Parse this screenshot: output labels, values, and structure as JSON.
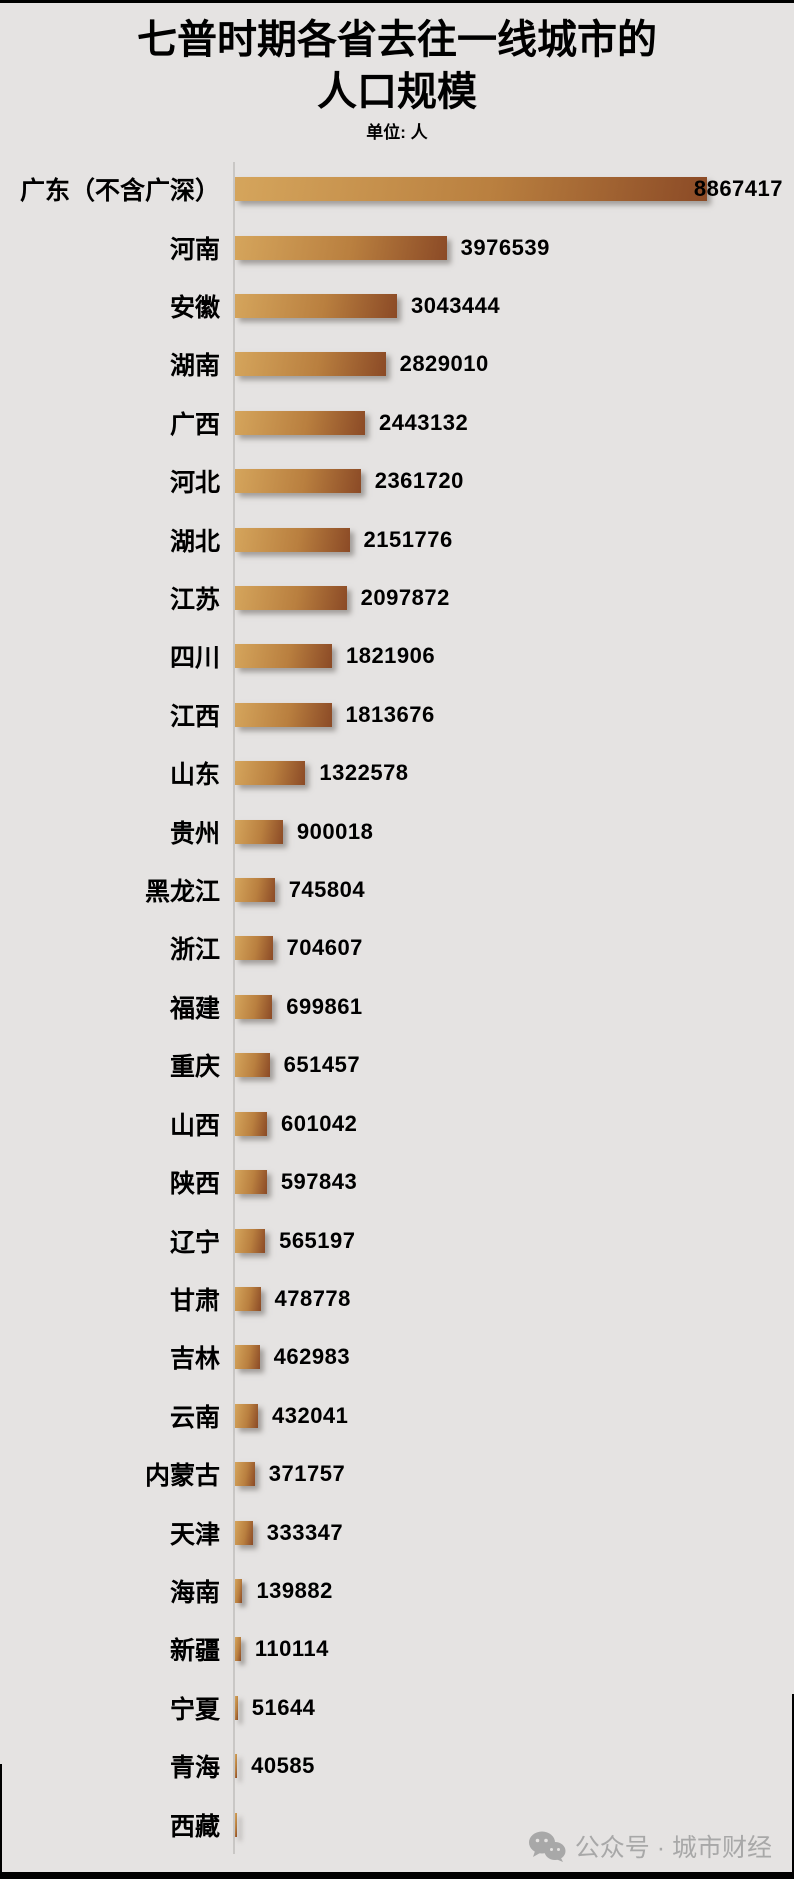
{
  "title": {
    "line1": "七普时期各省去往一线城市的",
    "line2": "人口规模",
    "subtitle": "单位: 人"
  },
  "watermark": {
    "icon": "wechat-icon",
    "text": "公众号 · 城市财经"
  },
  "colors": {
    "background": "#E5E3E2",
    "bar_gradient_start": "#D5A55C",
    "bar_gradient_end": "#8B4A26",
    "axis_line": "#C9C7C5",
    "text": "#000000",
    "watermark": "#A8A8A8",
    "border": "#000000"
  },
  "chart_data": {
    "type": "bar",
    "orientation": "horizontal",
    "title": "七普时期各省去往一线城市的人口规模",
    "unit_label": "单位: 人",
    "xlim": [
      0,
      8867417
    ],
    "grid": false,
    "legend": false,
    "value_labels_shown": true,
    "categories": [
      "广东（不含广深）",
      "河南",
      "安徽",
      "湖南",
      "广西",
      "河北",
      "湖北",
      "江苏",
      "四川",
      "江西",
      "山东",
      "贵州",
      "黑龙江",
      "浙江",
      "福建",
      "重庆",
      "山西",
      "陕西",
      "辽宁",
      "甘肃",
      "吉林",
      "云南",
      "内蒙古",
      "天津",
      "海南",
      "新疆",
      "宁夏",
      "青海",
      "西藏"
    ],
    "values": [
      8867417,
      3976539,
      3043444,
      2829010,
      2443132,
      2361720,
      2151776,
      2097872,
      1821906,
      1813676,
      1322578,
      900018,
      745804,
      704607,
      699861,
      651457,
      601042,
      597843,
      565197,
      478778,
      462983,
      432041,
      371757,
      333347,
      139882,
      110114,
      51644,
      40585,
      null
    ]
  }
}
